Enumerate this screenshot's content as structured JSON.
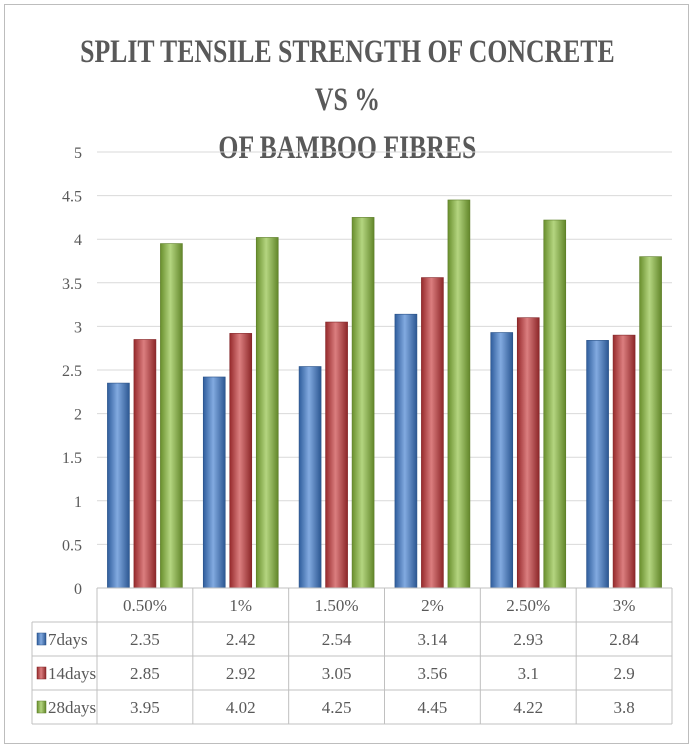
{
  "chart_data": {
    "type": "bar",
    "title_lines": [
      "SPLIT TENSILE STRENGTH OF CONCRETE VS %",
      "OF BAMBOO FIBRES"
    ],
    "categories": [
      "0.50%",
      "1%",
      "1.50%",
      "2%",
      "2.50%",
      "3%"
    ],
    "series": [
      {
        "name": "7days",
        "values": [
          2.35,
          2.42,
          2.54,
          3.14,
          2.93,
          2.84
        ],
        "color": "#3F7CD0"
      },
      {
        "name": "14days",
        "values": [
          2.85,
          2.92,
          3.05,
          3.56,
          3.1,
          2.9
        ],
        "color": "#C8383A"
      },
      {
        "name": "28days",
        "values": [
          3.95,
          4.02,
          4.25,
          4.45,
          4.22,
          3.8
        ],
        "color": "#8CBF3C"
      }
    ],
    "table": {
      "rows": [
        [
          "2.35",
          "2.42",
          "2.54",
          "3.14",
          "2.93",
          "2.84"
        ],
        [
          "2.85",
          "2.92",
          "3.05",
          "3.56",
          "3.1",
          "2.9"
        ],
        [
          "3.95",
          "4.02",
          "4.25",
          "4.45",
          "4.22",
          "3.8"
        ]
      ]
    },
    "yticks": [
      "0",
      "0.5",
      "1",
      "1.5",
      "2",
      "2.5",
      "3",
      "3.5",
      "4",
      "4.5",
      "5"
    ],
    "ylim": [
      0,
      5
    ],
    "grid": true,
    "legend": "data-table"
  }
}
